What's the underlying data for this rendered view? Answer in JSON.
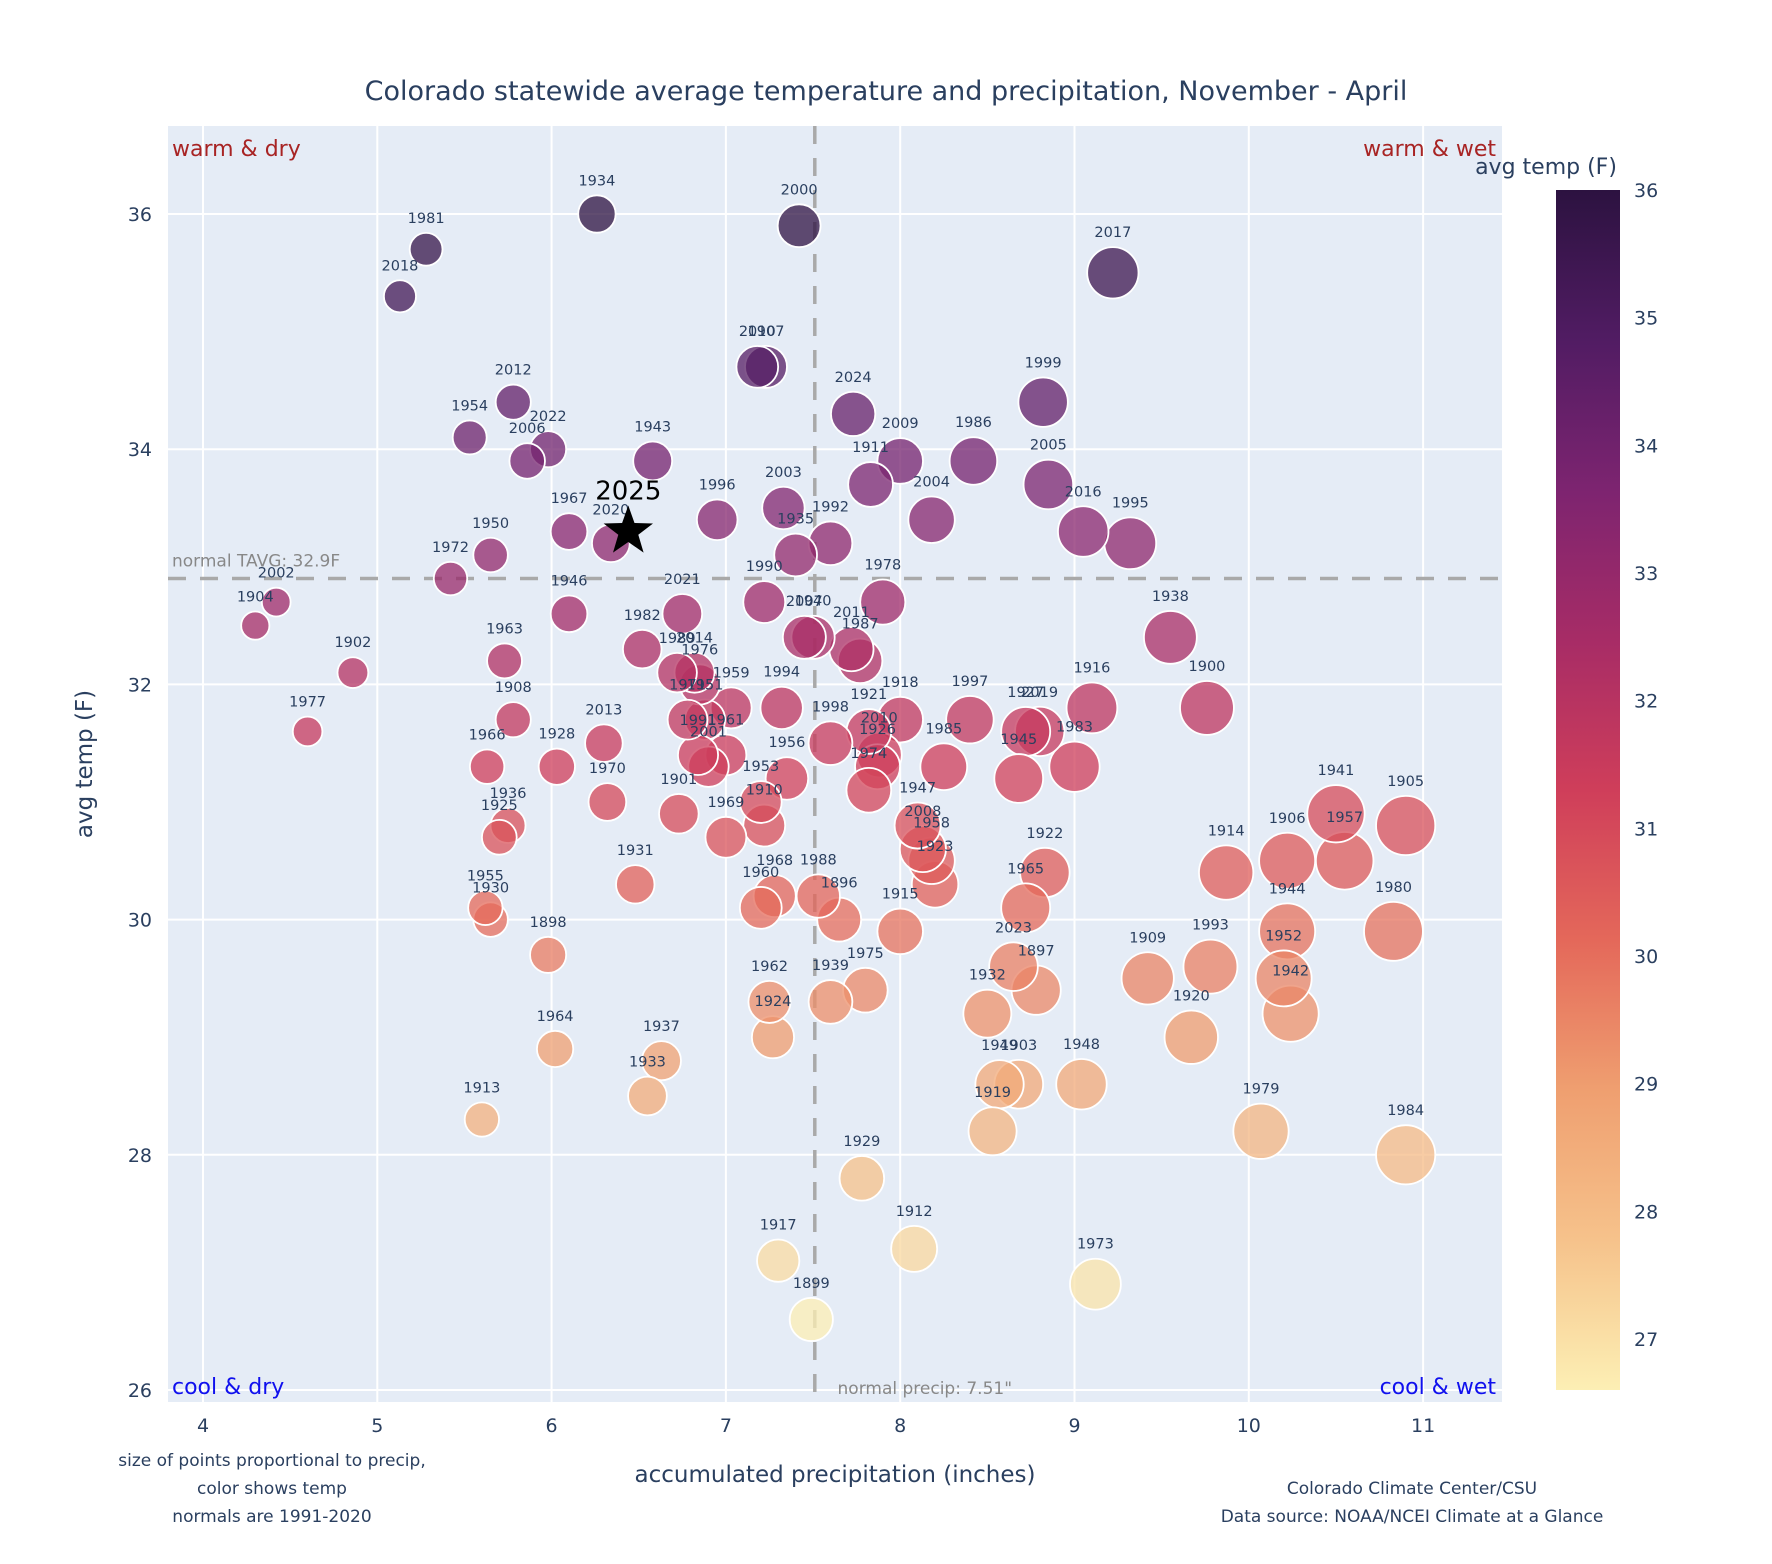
{
  "chart_data": {
    "type": "scatter",
    "title": "Colorado statewide average temperature and precipitation, November - April",
    "xlabel": "accumulated precipitation (inches)",
    "ylabel": "avg temp (F)",
    "xlim": [
      3.8,
      11.45
    ],
    "ylim": [
      25.85,
      36.75
    ],
    "xticks": [
      4,
      5,
      6,
      7,
      8,
      9,
      10,
      11
    ],
    "yticks": [
      26,
      28,
      30,
      32,
      34,
      36
    ],
    "grid": true,
    "size_encoding": "precipitation",
    "color_encoding": "avg temp (F)",
    "colorbar": {
      "title": "avg temp (F)",
      "range": [
        26.6,
        36.0
      ],
      "ticks": [
        27,
        28,
        29,
        30,
        31,
        32,
        33,
        34,
        35,
        36
      ],
      "colorscale": [
        "#fcefb4",
        "#f6c28b",
        "#ef9f70",
        "#e4685a",
        "#cf3e5a",
        "#a72c66",
        "#7d2470",
        "#511c63",
        "#2c1240"
      ]
    },
    "reference_lines": {
      "normal_precip": 7.51,
      "normal_precip_label": "normal precip: 7.51\"",
      "normal_temp": 32.9,
      "normal_temp_label": "normal TAVG: 32.9F"
    },
    "quadrant_labels": {
      "top_left": "warm & dry",
      "top_right": "warm & wet",
      "bottom_left": "cool & dry",
      "bottom_right": "cool & wet"
    },
    "highlight": {
      "year": "2025",
      "x": 6.44,
      "y": 33.3,
      "marker": "star"
    },
    "points": [
      {
        "year": "1934",
        "x": 6.26,
        "y": 36.0
      },
      {
        "year": "2000",
        "x": 7.42,
        "y": 35.9
      },
      {
        "year": "1981",
        "x": 5.28,
        "y": 35.7
      },
      {
        "year": "2018",
        "x": 5.13,
        "y": 35.3
      },
      {
        "year": "2017",
        "x": 9.22,
        "y": 35.5
      },
      {
        "year": "2010",
        "x": 7.18,
        "y": 34.7
      },
      {
        "year": "1907",
        "x": 7.23,
        "y": 34.7
      },
      {
        "year": "2012",
        "x": 5.78,
        "y": 34.4
      },
      {
        "year": "1999",
        "x": 8.82,
        "y": 34.4
      },
      {
        "year": "2024",
        "x": 7.73,
        "y": 34.3
      },
      {
        "year": "1954",
        "x": 5.53,
        "y": 34.1
      },
      {
        "year": "2022",
        "x": 5.98,
        "y": 34.0
      },
      {
        "year": "2006",
        "x": 5.86,
        "y": 33.9
      },
      {
        "year": "1943",
        "x": 6.58,
        "y": 33.9
      },
      {
        "year": "2009",
        "x": 8.0,
        "y": 33.9
      },
      {
        "year": "1986",
        "x": 8.42,
        "y": 33.9
      },
      {
        "year": "1911",
        "x": 7.83,
        "y": 33.7
      },
      {
        "year": "2005",
        "x": 8.85,
        "y": 33.7
      },
      {
        "year": "2003",
        "x": 7.33,
        "y": 33.5
      },
      {
        "year": "1996",
        "x": 6.95,
        "y": 33.4
      },
      {
        "year": "2004",
        "x": 8.18,
        "y": 33.4
      },
      {
        "year": "1967",
        "x": 6.1,
        "y": 33.3
      },
      {
        "year": "2016",
        "x": 9.05,
        "y": 33.3
      },
      {
        "year": "1992",
        "x": 7.6,
        "y": 33.2
      },
      {
        "year": "2020",
        "x": 6.34,
        "y": 33.2
      },
      {
        "year": "1995",
        "x": 9.32,
        "y": 33.2
      },
      {
        "year": "1950",
        "x": 5.65,
        "y": 33.1
      },
      {
        "year": "1935",
        "x": 7.4,
        "y": 33.1
      },
      {
        "year": "1972",
        "x": 5.42,
        "y": 32.9
      },
      {
        "year": "1990",
        "x": 7.22,
        "y": 32.7
      },
      {
        "year": "1978",
        "x": 7.9,
        "y": 32.7
      },
      {
        "year": "2002",
        "x": 4.42,
        "y": 32.7
      },
      {
        "year": "1946",
        "x": 6.1,
        "y": 32.6
      },
      {
        "year": "2021",
        "x": 6.75,
        "y": 32.6
      },
      {
        "year": "1904",
        "x": 4.3,
        "y": 32.5
      },
      {
        "year": "1938",
        "x": 9.55,
        "y": 32.4
      },
      {
        "year": "2007",
        "x": 7.45,
        "y": 32.4
      },
      {
        "year": "1940",
        "x": 7.5,
        "y": 32.4
      },
      {
        "year": "2011",
        "x": 7.72,
        "y": 32.3
      },
      {
        "year": "1982",
        "x": 6.52,
        "y": 32.3
      },
      {
        "year": "1963",
        "x": 5.73,
        "y": 32.2
      },
      {
        "year": "1987",
        "x": 7.77,
        "y": 32.2
      },
      {
        "year": "1989",
        "x": 6.72,
        "y": 32.1
      },
      {
        "year": "2014",
        "x": 6.82,
        "y": 32.1
      },
      {
        "year": "1976",
        "x": 6.85,
        "y": 32.0
      },
      {
        "year": "1902",
        "x": 4.86,
        "y": 32.1
      },
      {
        "year": "1900",
        "x": 9.76,
        "y": 31.8
      },
      {
        "year": "1916",
        "x": 9.1,
        "y": 31.8
      },
      {
        "year": "1959",
        "x": 7.03,
        "y": 31.8
      },
      {
        "year": "1994",
        "x": 7.32,
        "y": 31.8
      },
      {
        "year": "1971",
        "x": 6.78,
        "y": 31.7
      },
      {
        "year": "1951",
        "x": 6.88,
        "y": 31.7
      },
      {
        "year": "1918",
        "x": 8.0,
        "y": 31.7
      },
      {
        "year": "1997",
        "x": 8.4,
        "y": 31.7
      },
      {
        "year": "1908",
        "x": 5.78,
        "y": 31.7
      },
      {
        "year": "1921",
        "x": 7.82,
        "y": 31.6
      },
      {
        "year": "1927",
        "x": 8.72,
        "y": 31.6
      },
      {
        "year": "2019",
        "x": 8.8,
        "y": 31.6
      },
      {
        "year": "1977",
        "x": 4.6,
        "y": 31.6
      },
      {
        "year": "1998",
        "x": 7.6,
        "y": 31.5
      },
      {
        "year": "2013",
        "x": 6.3,
        "y": 31.5
      },
      {
        "year": "1961",
        "x": 7.0,
        "y": 31.4
      },
      {
        "year": "1991",
        "x": 6.84,
        "y": 31.4
      },
      {
        "year": "2001",
        "x": 6.9,
        "y": 31.3
      },
      {
        "year": "1966",
        "x": 5.63,
        "y": 31.3
      },
      {
        "year": "1928",
        "x": 6.03,
        "y": 31.3
      },
      {
        "year": "2010b",
        "x": 7.88,
        "y": 31.4
      },
      {
        "year": "1926",
        "x": 7.87,
        "y": 31.3
      },
      {
        "year": "1985",
        "x": 8.25,
        "y": 31.3
      },
      {
        "year": "1983",
        "x": 9.0,
        "y": 31.3
      },
      {
        "year": "1945",
        "x": 8.68,
        "y": 31.2
      },
      {
        "year": "1956",
        "x": 7.35,
        "y": 31.2
      },
      {
        "year": "1974",
        "x": 7.82,
        "y": 31.1
      },
      {
        "year": "1953",
        "x": 7.2,
        "y": 31.0
      },
      {
        "year": "1970",
        "x": 6.32,
        "y": 31.0
      },
      {
        "year": "1901",
        "x": 6.73,
        "y": 30.9
      },
      {
        "year": "1941",
        "x": 10.5,
        "y": 30.9
      },
      {
        "year": "1947",
        "x": 8.1,
        "y": 30.8
      },
      {
        "year": "1910",
        "x": 7.22,
        "y": 30.8
      },
      {
        "year": "1905",
        "x": 10.9,
        "y": 30.8
      },
      {
        "year": "1936",
        "x": 5.75,
        "y": 30.8
      },
      {
        "year": "1925",
        "x": 5.7,
        "y": 30.7
      },
      {
        "year": "1969",
        "x": 7.0,
        "y": 30.7
      },
      {
        "year": "2008",
        "x": 8.13,
        "y": 30.6
      },
      {
        "year": "1958",
        "x": 8.18,
        "y": 30.5
      },
      {
        "year": "1906",
        "x": 10.22,
        "y": 30.5
      },
      {
        "year": "1957",
        "x": 10.55,
        "y": 30.5
      },
      {
        "year": "1922",
        "x": 8.83,
        "y": 30.4
      },
      {
        "year": "1914",
        "x": 9.87,
        "y": 30.4
      },
      {
        "year": "1923",
        "x": 8.2,
        "y": 30.3
      },
      {
        "year": "1931",
        "x": 6.48,
        "y": 30.3
      },
      {
        "year": "1968",
        "x": 7.28,
        "y": 30.2
      },
      {
        "year": "1988",
        "x": 7.53,
        "y": 30.2
      },
      {
        "year": "1960",
        "x": 7.2,
        "y": 30.1
      },
      {
        "year": "1965",
        "x": 8.72,
        "y": 30.1
      },
      {
        "year": "1955",
        "x": 5.62,
        "y": 30.1
      },
      {
        "year": "1896",
        "x": 7.65,
        "y": 30.0
      },
      {
        "year": "1930",
        "x": 5.65,
        "y": 30.0
      },
      {
        "year": "1915",
        "x": 8.0,
        "y": 29.9
      },
      {
        "year": "1944",
        "x": 10.22,
        "y": 29.9
      },
      {
        "year": "1980",
        "x": 10.83,
        "y": 29.9
      },
      {
        "year": "1898",
        "x": 5.98,
        "y": 29.7
      },
      {
        "year": "2023",
        "x": 8.65,
        "y": 29.6
      },
      {
        "year": "1993",
        "x": 9.78,
        "y": 29.6
      },
      {
        "year": "1909",
        "x": 9.42,
        "y": 29.5
      },
      {
        "year": "1952",
        "x": 10.2,
        "y": 29.5
      },
      {
        "year": "1975",
        "x": 7.8,
        "y": 29.4
      },
      {
        "year": "1897",
        "x": 8.78,
        "y": 29.4
      },
      {
        "year": "1962",
        "x": 7.25,
        "y": 29.3
      },
      {
        "year": "1939",
        "x": 7.6,
        "y": 29.3
      },
      {
        "year": "1932",
        "x": 8.5,
        "y": 29.2
      },
      {
        "year": "1942",
        "x": 10.24,
        "y": 29.2
      },
      {
        "year": "1920",
        "x": 9.67,
        "y": 29.0
      },
      {
        "year": "1924",
        "x": 7.27,
        "y": 29.0
      },
      {
        "year": "1964",
        "x": 6.02,
        "y": 28.9
      },
      {
        "year": "1937",
        "x": 6.63,
        "y": 28.8
      },
      {
        "year": "1949",
        "x": 8.57,
        "y": 28.6
      },
      {
        "year": "1903",
        "x": 8.68,
        "y": 28.6
      },
      {
        "year": "1948",
        "x": 9.04,
        "y": 28.6
      },
      {
        "year": "1933",
        "x": 6.55,
        "y": 28.5
      },
      {
        "year": "1913",
        "x": 5.6,
        "y": 28.3
      },
      {
        "year": "1919",
        "x": 8.53,
        "y": 28.2
      },
      {
        "year": "1979",
        "x": 10.07,
        "y": 28.2
      },
      {
        "year": "1984",
        "x": 10.9,
        "y": 28.0
      },
      {
        "year": "1929",
        "x": 7.78,
        "y": 27.8
      },
      {
        "year": "1912",
        "x": 8.08,
        "y": 27.2
      },
      {
        "year": "1917",
        "x": 7.3,
        "y": 27.1
      },
      {
        "year": "1973",
        "x": 9.12,
        "y": 26.9
      },
      {
        "year": "1899",
        "x": 7.49,
        "y": 26.6
      }
    ]
  },
  "footnotes": {
    "left": [
      "size of points proportional to precip,",
      "color shows temp",
      "normals are 1991-2020"
    ],
    "right": [
      "Colorado Climate Center/CSU",
      "Data source: NOAA/NCEI Climate at a Glance"
    ]
  }
}
